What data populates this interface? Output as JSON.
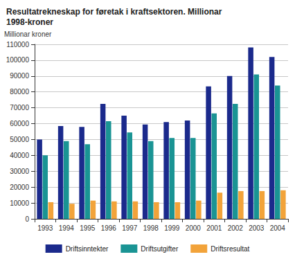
{
  "chart_data": {
    "type": "bar",
    "title": "Resultatrekneskap for føretak i kraftsektoren. Millionar 1998-kroner",
    "ylabel": "Millionar kroner",
    "categories": [
      "1993",
      "1994",
      "1995",
      "1996",
      "1997",
      "1998",
      "1999",
      "2000",
      "2001",
      "2002",
      "2003",
      "2004"
    ],
    "series": [
      {
        "name": "Driftsinntekter",
        "color": "#1b2a8c",
        "values": [
          50000,
          58500,
          58000,
          72500,
          65000,
          59500,
          61000,
          62000,
          83500,
          90000,
          108000,
          102000
        ]
      },
      {
        "name": "Driftsutgifter",
        "color": "#1a9494",
        "values": [
          40000,
          49000,
          47000,
          61500,
          54500,
          49000,
          51000,
          51000,
          66500,
          72500,
          91000,
          84000
        ]
      },
      {
        "name": "Driftsresultat",
        "color": "#f2a33a",
        "values": [
          10500,
          9500,
          11500,
          11000,
          11000,
          10500,
          10500,
          11500,
          16500,
          17500,
          17500,
          18000
        ]
      }
    ],
    "ylim": [
      0,
      110000
    ],
    "yticks": [
      0,
      10000,
      20000,
      30000,
      40000,
      50000,
      60000,
      70000,
      80000,
      90000,
      100000,
      110000
    ],
    "grid": true,
    "legend": "bottom"
  }
}
